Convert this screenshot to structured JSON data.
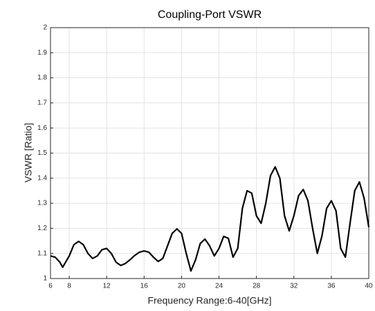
{
  "chart_data": {
    "type": "line",
    "title": "Coupling-Port VSWR",
    "x_label": "Frequency Range:6-40[GHz]",
    "y_label": "VSWR [Ratio]",
    "x": [
      6,
      6.5,
      7,
      7.3,
      8,
      8.5,
      9,
      9.5,
      10,
      10.5,
      11,
      11.5,
      12,
      12.5,
      13,
      13.5,
      14,
      14.5,
      15,
      15.5,
      16,
      16.5,
      17,
      17.5,
      18,
      18.5,
      19,
      19.5,
      20,
      20.5,
      21,
      21.5,
      22,
      22.5,
      23,
      23.5,
      24,
      24.5,
      25,
      25.5,
      26,
      26.5,
      27,
      27.5,
      28,
      28.5,
      29,
      29.5,
      30,
      30.5,
      31,
      31.5,
      32,
      32.5,
      33,
      33.5,
      34,
      34.5,
      35,
      35.5,
      36,
      36.5,
      37,
      37.5,
      38,
      38.5,
      39,
      39.5,
      40
    ],
    "series": [
      {
        "color": "#000000",
        "values": [
          1.09,
          1.085,
          1.065,
          1.045,
          1.09,
          1.135,
          1.148,
          1.135,
          1.1,
          1.08,
          1.09,
          1.115,
          1.12,
          1.1,
          1.065,
          1.052,
          1.06,
          1.075,
          1.092,
          1.105,
          1.11,
          1.105,
          1.085,
          1.068,
          1.08,
          1.13,
          1.18,
          1.198,
          1.18,
          1.1,
          1.03,
          1.075,
          1.14,
          1.157,
          1.13,
          1.09,
          1.12,
          1.168,
          1.16,
          1.085,
          1.12,
          1.28,
          1.35,
          1.34,
          1.25,
          1.22,
          1.3,
          1.41,
          1.445,
          1.4,
          1.25,
          1.19,
          1.25,
          1.33,
          1.355,
          1.31,
          1.2,
          1.1,
          1.17,
          1.28,
          1.31,
          1.27,
          1.12,
          1.085,
          1.22,
          1.35,
          1.385,
          1.32,
          1.205
        ]
      }
    ],
    "xlim": [
      6,
      40
    ],
    "xticks": [
      6,
      8,
      12,
      16,
      20,
      24,
      28,
      32,
      36,
      40
    ],
    "ylim": [
      1,
      2
    ],
    "yticks": [
      1,
      1.1,
      1.2,
      1.3,
      1.4,
      1.5,
      1.6,
      1.7,
      1.8,
      1.9,
      2
    ],
    "grid": true
  }
}
